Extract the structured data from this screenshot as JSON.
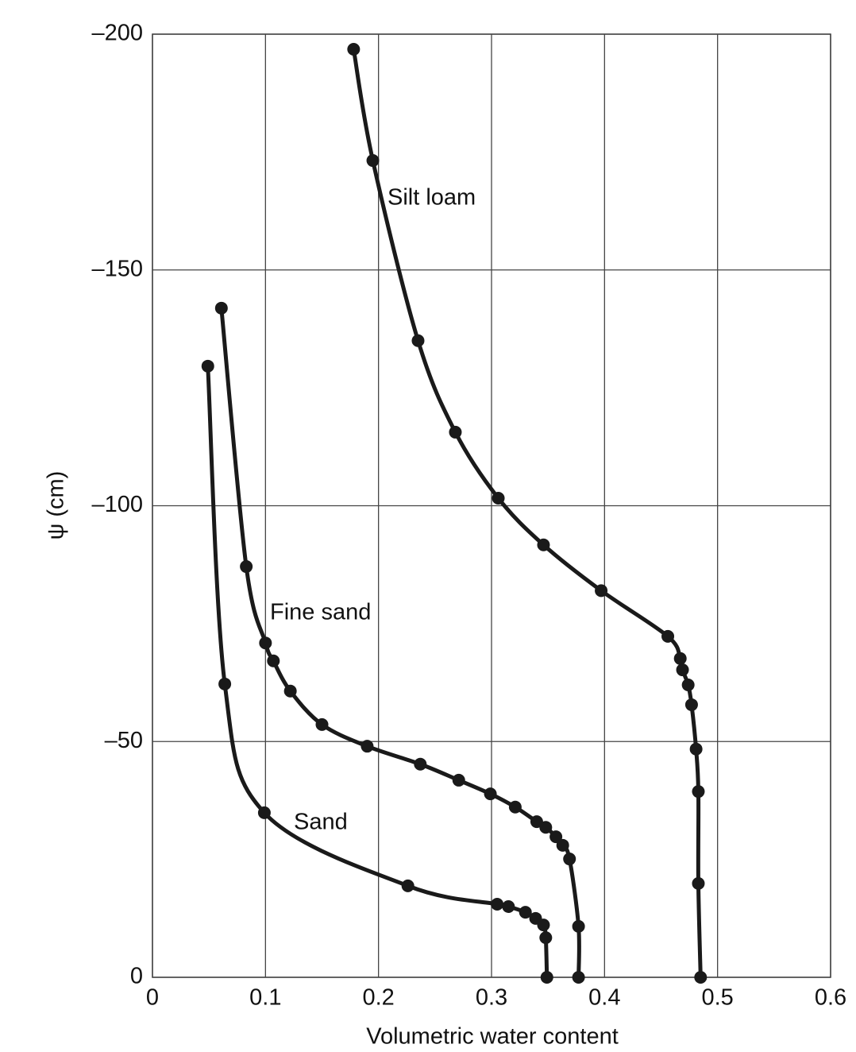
{
  "chart_data": {
    "type": "line",
    "xlabel": "Volumetric water content",
    "ylabel": "ψ (cm)",
    "xlim": [
      0,
      0.6
    ],
    "xticks": [
      0,
      0.1,
      0.2,
      0.3,
      0.4,
      0.5,
      0.6
    ],
    "ylim": [
      0,
      -200
    ],
    "yticks": [
      {
        "value": 0,
        "label": "0"
      },
      {
        "value": -50,
        "label": "–50"
      },
      {
        "value": -100,
        "label": "–100"
      },
      {
        "value": -150,
        "label": "–150"
      },
      {
        "value": -200,
        "label": "–200"
      }
    ],
    "grid": true,
    "series": [
      {
        "name": "Silt loam",
        "color": "#1a1a1a",
        "x": [
          0.178,
          0.195,
          0.235,
          0.268,
          0.306,
          0.346,
          0.397,
          0.456,
          0.467,
          0.469,
          0.474,
          0.477,
          0.481,
          0.483,
          0.483,
          0.485
        ],
        "values": [
          -196.8,
          -173.2,
          -135,
          -115.6,
          -101.6,
          -91.7,
          -82,
          -72.3,
          -67.6,
          -65.2,
          -62,
          -57.8,
          -48.4,
          -39.4,
          -19.9,
          0
        ]
      },
      {
        "name": "Fine sand",
        "color": "#1a1a1a",
        "x": [
          0.061,
          0.083,
          0.1,
          0.107,
          0.122,
          0.15,
          0.19,
          0.237,
          0.271,
          0.299,
          0.321,
          0.34,
          0.348,
          0.357,
          0.363,
          0.369,
          0.377,
          0.377
        ],
        "values": [
          -141.9,
          -87.1,
          -70.9,
          -67.1,
          -60.7,
          -53.6,
          -49,
          -45.2,
          -41.8,
          -38.9,
          -36.1,
          -33,
          -31.8,
          -29.8,
          -28,
          -25.1,
          -10.8,
          0
        ]
      },
      {
        "name": "Sand",
        "color": "#1a1a1a",
        "x": [
          0.049,
          0.064,
          0.099,
          0.226,
          0.305,
          0.315,
          0.33,
          0.339,
          0.346,
          0.348,
          0.349
        ],
        "values": [
          -129.6,
          -62.2,
          -34.9,
          -19.4,
          -15.5,
          -15,
          -13.8,
          -12.5,
          -11.1,
          -8.4,
          0
        ]
      }
    ]
  }
}
